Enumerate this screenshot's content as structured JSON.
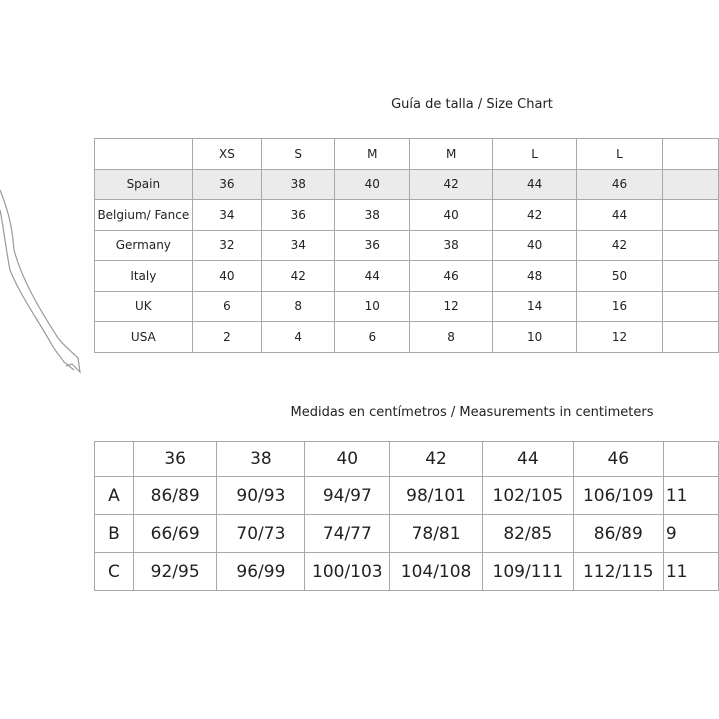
{
  "size_chart": {
    "title": "Guía de talla / Size Chart",
    "headers": [
      "",
      "XS",
      "S",
      "M",
      "M",
      "L",
      "L",
      ""
    ],
    "rows": [
      {
        "country": "Spain",
        "values": [
          "36",
          "38",
          "40",
          "42",
          "44",
          "46",
          ""
        ]
      },
      {
        "country": "Belgium/ Fance",
        "values": [
          "34",
          "36",
          "38",
          "40",
          "42",
          "44",
          ""
        ]
      },
      {
        "country": "Germany",
        "values": [
          "32",
          "34",
          "36",
          "38",
          "40",
          "42",
          ""
        ]
      },
      {
        "country": "Italy",
        "values": [
          "40",
          "42",
          "44",
          "46",
          "48",
          "50",
          ""
        ]
      },
      {
        "country": "UK",
        "values": [
          "6",
          "8",
          "10",
          "12",
          "14",
          "16",
          ""
        ]
      },
      {
        "country": "USA",
        "values": [
          "2",
          "4",
          "6",
          "8",
          "10",
          "12",
          ""
        ]
      }
    ]
  },
  "measurements": {
    "title": "Medidas en centímetros / Measurements in centimeters",
    "headers": [
      "",
      "36",
      "38",
      "40",
      "42",
      "44",
      "46",
      ""
    ],
    "rows": [
      {
        "label": "A",
        "values": [
          "86/89",
          "90/93",
          "94/97",
          "98/101",
          "102/105",
          "106/109",
          "11"
        ]
      },
      {
        "label": "B",
        "values": [
          "66/69",
          "70/73",
          "74/77",
          "78/81",
          "82/85",
          "86/89",
          "9"
        ]
      },
      {
        "label": "C",
        "values": [
          "92/95",
          "96/99",
          "100/103",
          "104/108",
          "109/111",
          "112/115",
          "11"
        ]
      }
    ]
  }
}
